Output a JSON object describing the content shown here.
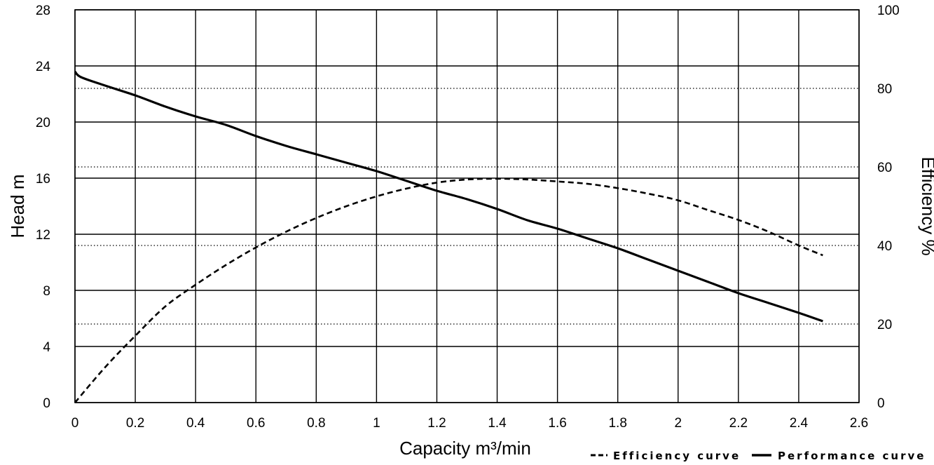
{
  "chart_data": {
    "type": "line",
    "xlabel": "Capacity m³/min",
    "ylabel": "Head m",
    "y2label": "Efficiency %",
    "xlim": [
      0,
      2.6
    ],
    "ylim": [
      0,
      28
    ],
    "y2lim": [
      0,
      100
    ],
    "x_ticks": [
      "0",
      "0.2",
      "0.4",
      "0.6",
      "0.8",
      "1",
      "1.2",
      "1.4",
      "1.6",
      "1.8",
      "2",
      "2.2",
      "2.4",
      "2.6"
    ],
    "y_ticks": [
      "0",
      "4",
      "8",
      "12",
      "16",
      "20",
      "24",
      "28"
    ],
    "y2_ticks": [
      "0",
      "20",
      "40",
      "60",
      "80",
      "100"
    ],
    "grid": true,
    "legend_position": "bottom-right",
    "series": [
      {
        "name": "Efficiency curve",
        "axis": "right",
        "style": "dashed",
        "color": "#000000",
        "x": [
          0,
          0.1,
          0.2,
          0.3,
          0.4,
          0.5,
          0.6,
          0.7,
          0.8,
          0.9,
          1.0,
          1.1,
          1.2,
          1.3,
          1.4,
          1.5,
          1.6,
          1.7,
          1.8,
          1.9,
          2.0,
          2.1,
          2.2,
          2.3,
          2.4,
          2.48
        ],
        "values": [
          0,
          9,
          17,
          24.5,
          30,
          35,
          39.5,
          43.5,
          47,
          50,
          52.5,
          54.5,
          56,
          56.8,
          57,
          56.8,
          56.3,
          55.7,
          54.6,
          53.2,
          51.5,
          49,
          46.5,
          43.5,
          40,
          37.5
        ]
      },
      {
        "name": "Performance curve",
        "axis": "left",
        "style": "solid",
        "color": "#000000",
        "x": [
          0,
          0.02,
          0.1,
          0.2,
          0.3,
          0.4,
          0.5,
          0.6,
          0.7,
          0.8,
          0.9,
          1.0,
          1.1,
          1.2,
          1.3,
          1.4,
          1.5,
          1.6,
          1.7,
          1.8,
          1.9,
          2.0,
          2.1,
          2.2,
          2.3,
          2.4,
          2.48
        ],
        "values": [
          23.6,
          23.2,
          22.6,
          21.9,
          21.1,
          20.4,
          19.8,
          19.0,
          18.3,
          17.7,
          17.1,
          16.5,
          15.8,
          15.1,
          14.5,
          13.8,
          13.0,
          12.4,
          11.7,
          11.0,
          10.2,
          9.4,
          8.6,
          7.8,
          7.1,
          6.4,
          5.8
        ]
      }
    ]
  }
}
